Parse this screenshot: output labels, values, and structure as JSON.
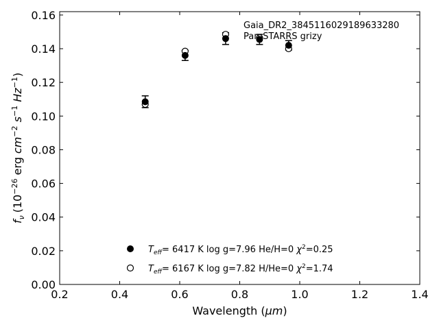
{
  "chart_data": {
    "type": "scatter",
    "title": "",
    "xlabel_main": "Wavelength (",
    "xlabel_unit": "μm",
    "xlabel_end": ")",
    "ylabel_sym": "f",
    "ylabel_sub": "ν",
    "ylabel_rest_a": "(10",
    "ylabel_exp_a": "−26",
    "ylabel_rest_b": " erg ",
    "ylabel_cm": "cm",
    "ylabel_exp_b": "−2",
    "ylabel_s": " s",
    "ylabel_exp_c": "−1",
    "ylabel_hz": " Hz",
    "ylabel_exp_d": "−1",
    "ylabel_close": ")",
    "xlim": [
      0.2,
      1.4
    ],
    "ylim": [
      0.0,
      0.162
    ],
    "xticks": [
      "0.2",
      "0.4",
      "0.6",
      "0.8",
      "1.0",
      "1.2",
      "1.4"
    ],
    "yticks": [
      "0.00",
      "0.02",
      "0.04",
      "0.06",
      "0.08",
      "0.10",
      "0.12",
      "0.14",
      "0.16"
    ],
    "annotations": [
      "Gaia_DR2_3845116029189633280",
      "Pan-STARRS grizy"
    ],
    "observed": {
      "x": [
        0.485,
        0.618,
        0.753,
        0.866,
        0.963
      ],
      "y": [
        0.1085,
        0.136,
        0.146,
        0.1455,
        0.142
      ],
      "yerr": [
        0.0035,
        0.003,
        0.0035,
        0.003,
        0.0028
      ]
    },
    "series": [
      {
        "name": "Teff= 6417 K log g=7.96 He/H=0 χ2=0.25",
        "marker": "filled",
        "x": [
          0.485,
          0.618,
          0.753,
          0.866,
          0.963
        ],
        "y": [
          0.1085,
          0.136,
          0.146,
          0.1455,
          0.142
        ]
      },
      {
        "name": "Teff= 6167 K log g=7.82 H/He=0 χ2=1.74",
        "marker": "open",
        "x": [
          0.485,
          0.618,
          0.753,
          0.866,
          0.963
        ],
        "y": [
          0.107,
          0.1385,
          0.1485,
          0.1465,
          0.14
        ]
      }
    ],
    "legend": [
      {
        "teff_sym": "T",
        "teff_sub": "eff",
        "teff_val": "=  6417 K  log g=7.96  He/H=0  ",
        "chi_sym": "χ",
        "chi_exp": "2",
        "chi_val": "=0.25"
      },
      {
        "teff_sym": "T",
        "teff_sub": "eff",
        "teff_val": "=  6167 K  log g=7.82  H/He=0  ",
        "chi_sym": "χ",
        "chi_exp": "2",
        "chi_val": "=1.74"
      }
    ],
    "legend_position": "bottom-center",
    "grid": false
  }
}
